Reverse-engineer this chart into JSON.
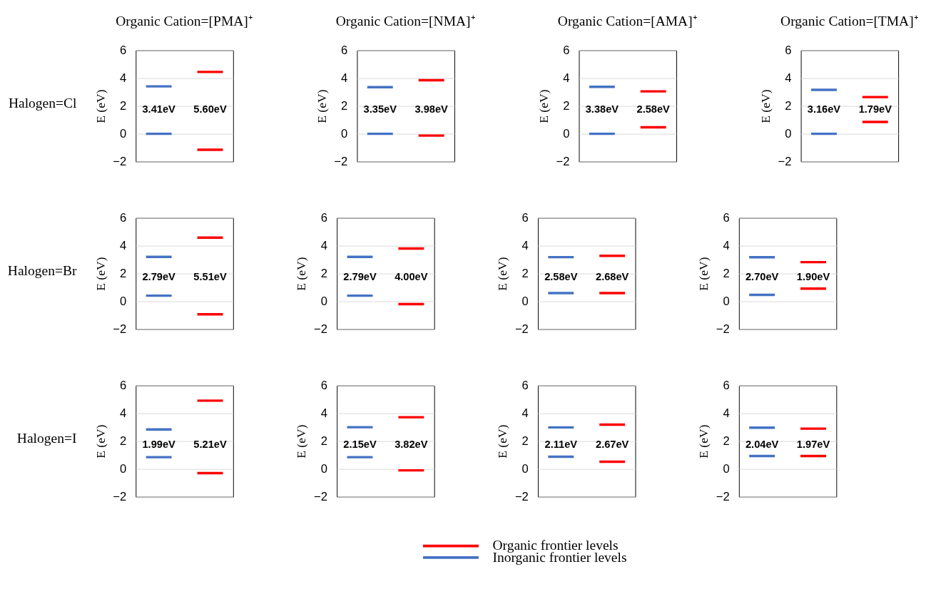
{
  "chart_data": [
    {
      "type": "line",
      "title": "Organic Cation=[PMA]⁺",
      "ylabel": "E (eV)",
      "categories": [
        null,
        null,
        null,
        null
      ],
      "ylim": [
        -2,
        6
      ],
      "yticks": [
        -2,
        0,
        2,
        4,
        6
      ],
      "grid": "y",
      "tick_labels": "y",
      "legend": "bottom",
      "series": [
        {
          "name": "Organic frontier levels",
          "color": "#ff0000",
          "values": [
            null,
            null,
            4.45,
            4.45
          ]
        },
        {
          "color": "#ff0000",
          "values": [
            null,
            null,
            -1.15,
            -1.15
          ]
        },
        {
          "name": "Inorganic frontier levels",
          "color": "#4472c4",
          "values": [
            3.41,
            3.41,
            null,
            null
          ]
        },
        {
          "color": "#4472c4",
          "values": [
            0,
            0,
            null,
            null
          ]
        }
      ],
      "annotations": [
        "Halogen=Cl",
        "3.41eV",
        "5.60eV"
      ]
    },
    {
      "type": "line",
      "title": "Organic Cation=[NMA]⁺",
      "ylabel": "E (eV)",
      "categories": [
        null,
        null,
        null,
        null
      ],
      "ylim": [
        -2,
        6
      ],
      "yticks": [
        -2,
        0,
        2,
        4,
        6
      ],
      "grid": "y",
      "tick_labels": "y",
      "series": [
        {
          "color": "#ff0000",
          "values": [
            null,
            null,
            3.85,
            3.85
          ]
        },
        {
          "color": "#ff0000",
          "values": [
            null,
            null,
            -0.13,
            -0.13
          ]
        },
        {
          "color": "#4472c4",
          "values": [
            3.35,
            3.35,
            null,
            null
          ]
        },
        {
          "color": "#4472c4",
          "values": [
            0,
            0,
            null,
            null
          ]
        }
      ],
      "annotations": [
        "3.35eV",
        "3.98eV"
      ]
    },
    {
      "type": "line",
      "title": "Organic Cation=[AMA]⁺",
      "ylabel": "E (eV)",
      "categories": [
        null,
        null,
        null,
        null
      ],
      "ylim": [
        -2,
        6
      ],
      "yticks": [
        -2,
        0,
        2,
        4,
        6
      ],
      "grid": "y",
      "tick_labels": "y",
      "series": [
        {
          "color": "#ff0000",
          "values": [
            null,
            null,
            3.05,
            3.05
          ]
        },
        {
          "color": "#ff0000",
          "values": [
            null,
            null,
            0.47,
            0.47
          ]
        },
        {
          "color": "#4472c4",
          "values": [
            3.38,
            3.38,
            null,
            null
          ]
        },
        {
          "color": "#4472c4",
          "values": [
            0,
            0,
            null,
            null
          ]
        }
      ],
      "annotations": [
        "3.38eV",
        "2.58eV"
      ]
    },
    {
      "type": "line",
      "title": "Organic Cation=[TMA]⁺",
      "ylabel": "E (eV)",
      "categories": [
        null,
        null,
        null,
        null
      ],
      "ylim": [
        -2,
        6
      ],
      "yticks": [
        -2,
        0,
        2,
        4,
        6
      ],
      "grid": "y",
      "tick_labels": "y",
      "series": [
        {
          "color": "#ff0000",
          "values": [
            null,
            null,
            2.64,
            2.64
          ]
        },
        {
          "color": "#ff0000",
          "values": [
            null,
            null,
            0.85,
            0.85
          ]
        },
        {
          "color": "#4472c4",
          "values": [
            3.16,
            3.16,
            null,
            null
          ]
        },
        {
          "color": "#4472c4",
          "values": [
            0,
            0,
            null,
            null
          ]
        }
      ],
      "annotations": [
        "3.16eV",
        "1.79eV"
      ]
    },
    {
      "type": "line",
      "ylabel": "E (eV)",
      "categories": [
        null,
        null,
        null,
        null
      ],
      "ylim": [
        -2,
        6
      ],
      "yticks": [
        -2,
        0,
        2,
        4,
        6
      ],
      "grid": "y",
      "tick_labels": "y",
      "series": [
        {
          "color": "#ff0000",
          "values": [
            null,
            null,
            4.58,
            4.58
          ]
        },
        {
          "color": "#ff0000",
          "values": [
            null,
            null,
            -0.93,
            -0.93
          ]
        },
        {
          "color": "#4472c4",
          "values": [
            3.2,
            3.2,
            null,
            null
          ]
        },
        {
          "color": "#4472c4",
          "values": [
            0.41,
            0.41,
            null,
            null
          ]
        }
      ],
      "annotations": [
        "Halogen=Br",
        "2.79eV",
        "5.51eV"
      ]
    },
    {
      "type": "line",
      "ylabel": "E (eV)",
      "categories": [
        null,
        null,
        null,
        null
      ],
      "ylim": [
        -2,
        6
      ],
      "yticks": [
        -2,
        0,
        2,
        4,
        6
      ],
      "grid": "y",
      "tick_labels": "y",
      "series": [
        {
          "color": "#ff0000",
          "values": [
            null,
            null,
            3.8,
            3.8
          ]
        },
        {
          "color": "#ff0000",
          "values": [
            null,
            null,
            -0.2,
            -0.2
          ]
        },
        {
          "color": "#4472c4",
          "values": [
            3.2,
            3.2,
            null,
            null
          ]
        },
        {
          "color": "#4472c4",
          "values": [
            0.41,
            0.41,
            null,
            null
          ]
        }
      ],
      "annotations": [
        "2.79eV",
        "4.00eV"
      ]
    },
    {
      "type": "line",
      "ylabel": "E (eV)",
      "categories": [
        null,
        null,
        null,
        null
      ],
      "ylim": [
        -2,
        6
      ],
      "yticks": [
        -2,
        0,
        2,
        4,
        6
      ],
      "grid": "y",
      "tick_labels": "y",
      "series": [
        {
          "color": "#ff0000",
          "values": [
            null,
            null,
            3.28,
            3.28
          ]
        },
        {
          "color": "#ff0000",
          "values": [
            null,
            null,
            0.6,
            0.6
          ]
        },
        {
          "color": "#4472c4",
          "values": [
            3.18,
            3.18,
            null,
            null
          ]
        },
        {
          "color": "#4472c4",
          "values": [
            0.6,
            0.6,
            null,
            null
          ]
        }
      ],
      "annotations": [
        "2.58eV",
        "2.68eV"
      ]
    },
    {
      "type": "line",
      "ylabel": "E (eV)",
      "categories": [
        null,
        null,
        null,
        null
      ],
      "ylim": [
        -2,
        6
      ],
      "yticks": [
        -2,
        0,
        2,
        4,
        6
      ],
      "grid": "y",
      "tick_labels": "y",
      "series": [
        {
          "color": "#ff0000",
          "values": [
            null,
            null,
            2.82,
            2.82
          ]
        },
        {
          "color": "#ff0000",
          "values": [
            null,
            null,
            0.92,
            0.92
          ]
        },
        {
          "color": "#4472c4",
          "values": [
            3.17,
            3.17,
            null,
            null
          ]
        },
        {
          "color": "#4472c4",
          "values": [
            0.47,
            0.47,
            null,
            null
          ]
        }
      ],
      "annotations": [
        "2.70eV",
        "1.90eV"
      ]
    },
    {
      "type": "line",
      "ylabel": "E (eV)",
      "categories": [
        null,
        null,
        null,
        null
      ],
      "ylim": [
        -2,
        6
      ],
      "yticks": [
        -2,
        0,
        2,
        4,
        6
      ],
      "grid": "y",
      "tick_labels": "y",
      "series": [
        {
          "color": "#ff0000",
          "values": [
            null,
            null,
            4.91,
            4.91
          ]
        },
        {
          "color": "#ff0000",
          "values": [
            null,
            null,
            -0.3,
            -0.3
          ]
        },
        {
          "color": "#4472c4",
          "values": [
            2.84,
            2.84,
            null,
            null
          ]
        },
        {
          "color": "#4472c4",
          "values": [
            0.85,
            0.85,
            null,
            null
          ]
        }
      ],
      "annotations": [
        "Halogen=I",
        "1.99eV",
        "5.21eV"
      ]
    },
    {
      "type": "line",
      "ylabel": "E (eV)",
      "categories": [
        null,
        null,
        null,
        null
      ],
      "ylim": [
        -2,
        6
      ],
      "yticks": [
        -2,
        0,
        2,
        4,
        6
      ],
      "grid": "y",
      "tick_labels": "y",
      "series": [
        {
          "color": "#ff0000",
          "values": [
            null,
            null,
            3.72,
            3.72
          ]
        },
        {
          "color": "#ff0000",
          "values": [
            null,
            null,
            -0.1,
            -0.1
          ]
        },
        {
          "color": "#4472c4",
          "values": [
            3.0,
            3.0,
            null,
            null
          ]
        },
        {
          "color": "#4472c4",
          "values": [
            0.85,
            0.85,
            null,
            null
          ]
        }
      ],
      "annotations": [
        "2.15eV",
        "3.82eV"
      ]
    },
    {
      "type": "line",
      "ylabel": "E (eV)",
      "categories": [
        null,
        null,
        null,
        null
      ],
      "ylim": [
        -2,
        6
      ],
      "yticks": [
        -2,
        0,
        2,
        4,
        6
      ],
      "grid": "y",
      "tick_labels": "y",
      "series": [
        {
          "color": "#ff0000",
          "values": [
            null,
            null,
            3.19,
            3.19
          ]
        },
        {
          "color": "#ff0000",
          "values": [
            null,
            null,
            0.52,
            0.52
          ]
        },
        {
          "color": "#4472c4",
          "values": [
            2.99,
            2.99,
            null,
            null
          ]
        },
        {
          "color": "#4472c4",
          "values": [
            0.88,
            0.88,
            null,
            null
          ]
        }
      ],
      "annotations": [
        "2.11eV",
        "2.67eV"
      ]
    },
    {
      "type": "line",
      "ylabel": "E (eV)",
      "categories": [
        null,
        null,
        null,
        null
      ],
      "ylim": [
        -2,
        6
      ],
      "yticks": [
        -2,
        0,
        2,
        4,
        6
      ],
      "grid": "y",
      "tick_labels": "y",
      "series": [
        {
          "color": "#ff0000",
          "values": [
            null,
            null,
            2.9,
            2.9
          ]
        },
        {
          "color": "#ff0000",
          "values": [
            null,
            null,
            0.93,
            0.93
          ]
        },
        {
          "color": "#4472c4",
          "values": [
            2.97,
            2.97,
            null,
            null
          ]
        },
        {
          "color": "#4472c4",
          "values": [
            0.93,
            0.93,
            null,
            null
          ]
        }
      ],
      "annotations": [
        "2.04eV",
        "1.97eV"
      ]
    }
  ]
}
